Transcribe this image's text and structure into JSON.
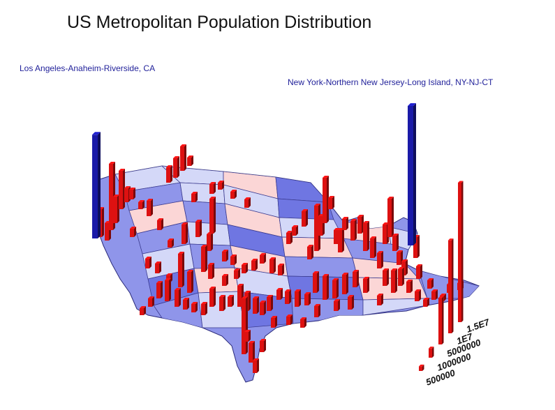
{
  "title": "US Metropolitan Population Distribution",
  "callouts": {
    "la": "Los Angeles-Anaheim-Riverside, CA",
    "ny": "New York-Northern New Jersey-Long Island, NY-NJ-CT"
  },
  "colors": {
    "highlight_bar": "#1a1aa8",
    "metro_bar": "#dd1111",
    "state_light": "#d4d8f8",
    "state_mid": "#8f95ea",
    "state_dark": "#6f76e2",
    "state_pink": "#fbd6d6",
    "map_edge": "#2a2a7a"
  },
  "legend": {
    "entries": [
      {
        "label": "500000",
        "value": 500000
      },
      {
        "label": "1000000",
        "value": 1000000
      },
      {
        "label": "5000000",
        "value": 5000000
      },
      {
        "label": "1E7",
        "value": 10000000
      },
      {
        "label": "1.5E7",
        "value": 15000000
      }
    ]
  },
  "chart_data": {
    "type": "bar",
    "highlighted": [
      {
        "name": "Los Angeles-Anaheim-Riverside, CA",
        "value": 14500000
      },
      {
        "name": "New York-Northern New Jersey-Long Island, NY-NJ-CT",
        "value": 19500000
      }
    ]
  }
}
